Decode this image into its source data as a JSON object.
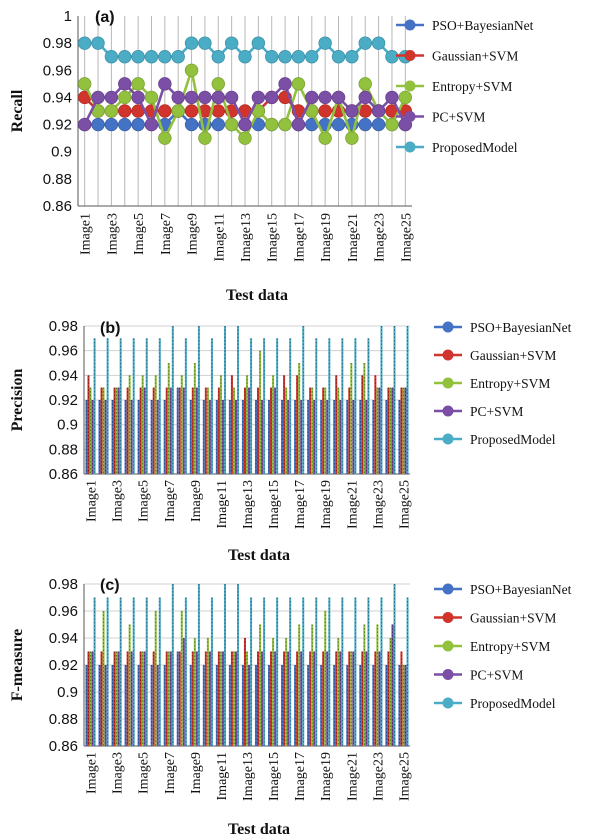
{
  "colors": {
    "PSO+BayesianNet": "#4472C4",
    "Gaussian+SVM": "#D0342C",
    "Entropy+SVM": "#92C13E",
    "PC+SVM": "#7B4FA6",
    "ProposedModel": "#4BACC6"
  },
  "chart_data": [
    {
      "type": "line",
      "panel_label": "(a)",
      "ylabel": "Recall",
      "xlabel": "Test data",
      "ylim": [
        0.86,
        1.0
      ],
      "yticks": [
        "0.86",
        "0.88",
        "0.9",
        "0.92",
        "0.94",
        "0.96",
        "0.98",
        "1"
      ],
      "yticks_values": [
        0.86,
        0.88,
        0.9,
        0.92,
        0.94,
        0.96,
        0.98,
        1.0
      ],
      "categories": [
        "Image1",
        "Image2",
        "Image3",
        "Image4",
        "Image5",
        "Image6",
        "Image7",
        "Image8",
        "Image9",
        "Image10",
        "Image11",
        "Image12",
        "Image13",
        "Image14",
        "Image15",
        "Image16",
        "Image17",
        "Image18",
        "Image19",
        "Image20",
        "Image21",
        "Image22",
        "Image23",
        "Image24",
        "Image25"
      ],
      "tick_labels": [
        "Image1",
        "Image3",
        "Image5",
        "Image7",
        "Image9",
        "Image11",
        "Image13",
        "Image15",
        "Image17",
        "Image19",
        "Image21",
        "Image23",
        "Image25"
      ],
      "grid": "vertical",
      "legend_position": "right",
      "series": [
        {
          "name": "PSO+BayesianNet",
          "values": [
            0.92,
            0.92,
            0.92,
            0.92,
            0.92,
            0.92,
            0.92,
            0.93,
            0.92,
            0.92,
            0.92,
            0.92,
            0.92,
            0.92,
            0.92,
            0.92,
            0.92,
            0.92,
            0.92,
            0.92,
            0.92,
            0.92,
            0.92,
            0.92,
            0.92
          ]
        },
        {
          "name": "Gaussian+SVM",
          "values": [
            0.94,
            0.93,
            0.93,
            0.93,
            0.93,
            0.93,
            0.93,
            0.93,
            0.93,
            0.93,
            0.93,
            0.93,
            0.93,
            0.93,
            0.94,
            0.94,
            0.93,
            0.93,
            0.93,
            0.93,
            0.93,
            0.93,
            0.93,
            0.93,
            0.93
          ]
        },
        {
          "name": "Entropy+SVM",
          "values": [
            0.95,
            0.93,
            0.93,
            0.94,
            0.95,
            0.94,
            0.91,
            0.93,
            0.96,
            0.91,
            0.95,
            0.92,
            0.91,
            0.93,
            0.92,
            0.92,
            0.95,
            0.93,
            0.91,
            0.94,
            0.91,
            0.95,
            0.93,
            0.92,
            0.94
          ]
        },
        {
          "name": "PC+SVM",
          "values": [
            0.92,
            0.94,
            0.94,
            0.95,
            0.94,
            0.92,
            0.95,
            0.94,
            0.94,
            0.94,
            0.94,
            0.94,
            0.92,
            0.94,
            0.94,
            0.95,
            0.92,
            0.94,
            0.94,
            0.94,
            0.93,
            0.94,
            0.93,
            0.94,
            0.92
          ]
        },
        {
          "name": "ProposedModel",
          "values": [
            0.98,
            0.98,
            0.97,
            0.97,
            0.97,
            0.97,
            0.97,
            0.97,
            0.98,
            0.98,
            0.97,
            0.98,
            0.97,
            0.98,
            0.97,
            0.97,
            0.97,
            0.97,
            0.98,
            0.97,
            0.97,
            0.98,
            0.98,
            0.97,
            0.97
          ]
        }
      ]
    },
    {
      "type": "bar",
      "panel_label": "(b)",
      "ylabel": "Precision",
      "xlabel": "Test data",
      "ylim": [
        0.86,
        0.98
      ],
      "yticks": [
        "0.86",
        "0.88",
        "0.9",
        "0.92",
        "0.94",
        "0.96",
        "0.98"
      ],
      "yticks_values": [
        0.86,
        0.88,
        0.9,
        0.92,
        0.94,
        0.96,
        0.98
      ],
      "categories": [
        "Image1",
        "Image2",
        "Image3",
        "Image4",
        "Image5",
        "Image6",
        "Image7",
        "Image8",
        "Image9",
        "Image10",
        "Image11",
        "Image12",
        "Image13",
        "Image14",
        "Image15",
        "Image16",
        "Image17",
        "Image18",
        "Image19",
        "Image20",
        "Image21",
        "Image22",
        "Image23",
        "Image24",
        "Image25"
      ],
      "tick_labels": [
        "Image1",
        "Image3",
        "Image5",
        "Image7",
        "Image9",
        "Image11",
        "Image13",
        "Image15",
        "Image17",
        "Image19",
        "Image21",
        "Image23",
        "Image25"
      ],
      "grid": "horizontal",
      "legend_position": "right",
      "series": [
        {
          "name": "PSO+BayesianNet",
          "values": [
            0.92,
            0.92,
            0.92,
            0.92,
            0.92,
            0.92,
            0.92,
            0.93,
            0.92,
            0.92,
            0.92,
            0.92,
            0.92,
            0.92,
            0.92,
            0.92,
            0.92,
            0.92,
            0.92,
            0.92,
            0.92,
            0.92,
            0.92,
            0.92,
            0.92
          ]
        },
        {
          "name": "Gaussian+SVM",
          "values": [
            0.94,
            0.93,
            0.93,
            0.93,
            0.93,
            0.93,
            0.93,
            0.93,
            0.93,
            0.93,
            0.93,
            0.94,
            0.93,
            0.93,
            0.93,
            0.94,
            0.94,
            0.93,
            0.93,
            0.94,
            0.93,
            0.94,
            0.94,
            0.93,
            0.93
          ]
        },
        {
          "name": "Entropy+SVM",
          "values": [
            0.93,
            0.93,
            0.93,
            0.94,
            0.94,
            0.94,
            0.95,
            0.94,
            0.95,
            0.93,
            0.94,
            0.93,
            0.94,
            0.96,
            0.94,
            0.93,
            0.95,
            0.93,
            0.93,
            0.93,
            0.95,
            0.95,
            0.93,
            0.93,
            0.93
          ]
        },
        {
          "name": "PC+SVM",
          "values": [
            0.92,
            0.92,
            0.93,
            0.92,
            0.93,
            0.92,
            0.93,
            0.93,
            0.93,
            0.92,
            0.92,
            0.92,
            0.93,
            0.92,
            0.93,
            0.92,
            0.92,
            0.92,
            0.92,
            0.92,
            0.92,
            0.92,
            0.93,
            0.93,
            0.93
          ]
        },
        {
          "name": "ProposedModel",
          "values": [
            0.97,
            0.97,
            0.97,
            0.97,
            0.97,
            0.97,
            0.98,
            0.97,
            0.98,
            0.97,
            0.98,
            0.98,
            0.97,
            0.97,
            0.97,
            0.97,
            0.98,
            0.97,
            0.97,
            0.97,
            0.97,
            0.97,
            0.98,
            0.98,
            0.98
          ]
        }
      ]
    },
    {
      "type": "bar",
      "panel_label": "(c)",
      "ylabel": "F-measure",
      "xlabel": "Test data",
      "ylim": [
        0.86,
        0.98
      ],
      "yticks": [
        "0.86",
        "0.88",
        "0.9",
        "0.92",
        "0.94",
        "0.96",
        "0.98"
      ],
      "yticks_values": [
        0.86,
        0.88,
        0.9,
        0.92,
        0.94,
        0.96,
        0.98
      ],
      "categories": [
        "Image1",
        "Image2",
        "Image3",
        "Image4",
        "Image5",
        "Image6",
        "Image7",
        "Image8",
        "Image9",
        "Image10",
        "Image11",
        "Image12",
        "Image13",
        "Image14",
        "Image15",
        "Image16",
        "Image17",
        "Image18",
        "Image19",
        "Image20",
        "Image21",
        "Image22",
        "Image23",
        "Image24",
        "Image25"
      ],
      "tick_labels": [
        "Image1",
        "Image3",
        "Image5",
        "Image7",
        "Image9",
        "Image11",
        "Image13",
        "Image15",
        "Image17",
        "Image19",
        "Image21",
        "Image23",
        "Image25"
      ],
      "grid": "horizontal",
      "legend_position": "right",
      "series": [
        {
          "name": "PSO+BayesianNet",
          "values": [
            0.92,
            0.92,
            0.92,
            0.92,
            0.92,
            0.92,
            0.92,
            0.93,
            0.92,
            0.92,
            0.92,
            0.92,
            0.92,
            0.92,
            0.92,
            0.92,
            0.92,
            0.92,
            0.92,
            0.92,
            0.92,
            0.92,
            0.92,
            0.92,
            0.92
          ]
        },
        {
          "name": "Gaussian+SVM",
          "values": [
            0.93,
            0.93,
            0.93,
            0.93,
            0.93,
            0.93,
            0.93,
            0.93,
            0.93,
            0.93,
            0.93,
            0.93,
            0.94,
            0.93,
            0.93,
            0.93,
            0.93,
            0.93,
            0.93,
            0.93,
            0.93,
            0.93,
            0.93,
            0.93,
            0.93
          ]
        },
        {
          "name": "Entropy+SVM",
          "values": [
            0.93,
            0.96,
            0.93,
            0.95,
            0.93,
            0.96,
            0.93,
            0.96,
            0.94,
            0.94,
            0.93,
            0.93,
            0.93,
            0.95,
            0.94,
            0.94,
            0.95,
            0.95,
            0.96,
            0.94,
            0.93,
            0.95,
            0.95,
            0.94,
            0.92
          ]
        },
        {
          "name": "PC+SVM",
          "values": [
            0.93,
            0.92,
            0.93,
            0.93,
            0.93,
            0.92,
            0.93,
            0.94,
            0.93,
            0.93,
            0.93,
            0.93,
            0.92,
            0.93,
            0.93,
            0.93,
            0.93,
            0.93,
            0.93,
            0.93,
            0.93,
            0.93,
            0.93,
            0.95,
            0.92
          ]
        },
        {
          "name": "ProposedModel",
          "values": [
            0.97,
            0.97,
            0.97,
            0.97,
            0.97,
            0.97,
            0.98,
            0.97,
            0.98,
            0.97,
            0.98,
            0.98,
            0.97,
            0.97,
            0.97,
            0.97,
            0.97,
            0.97,
            0.97,
            0.97,
            0.97,
            0.97,
            0.97,
            0.98,
            0.97
          ]
        }
      ]
    }
  ]
}
